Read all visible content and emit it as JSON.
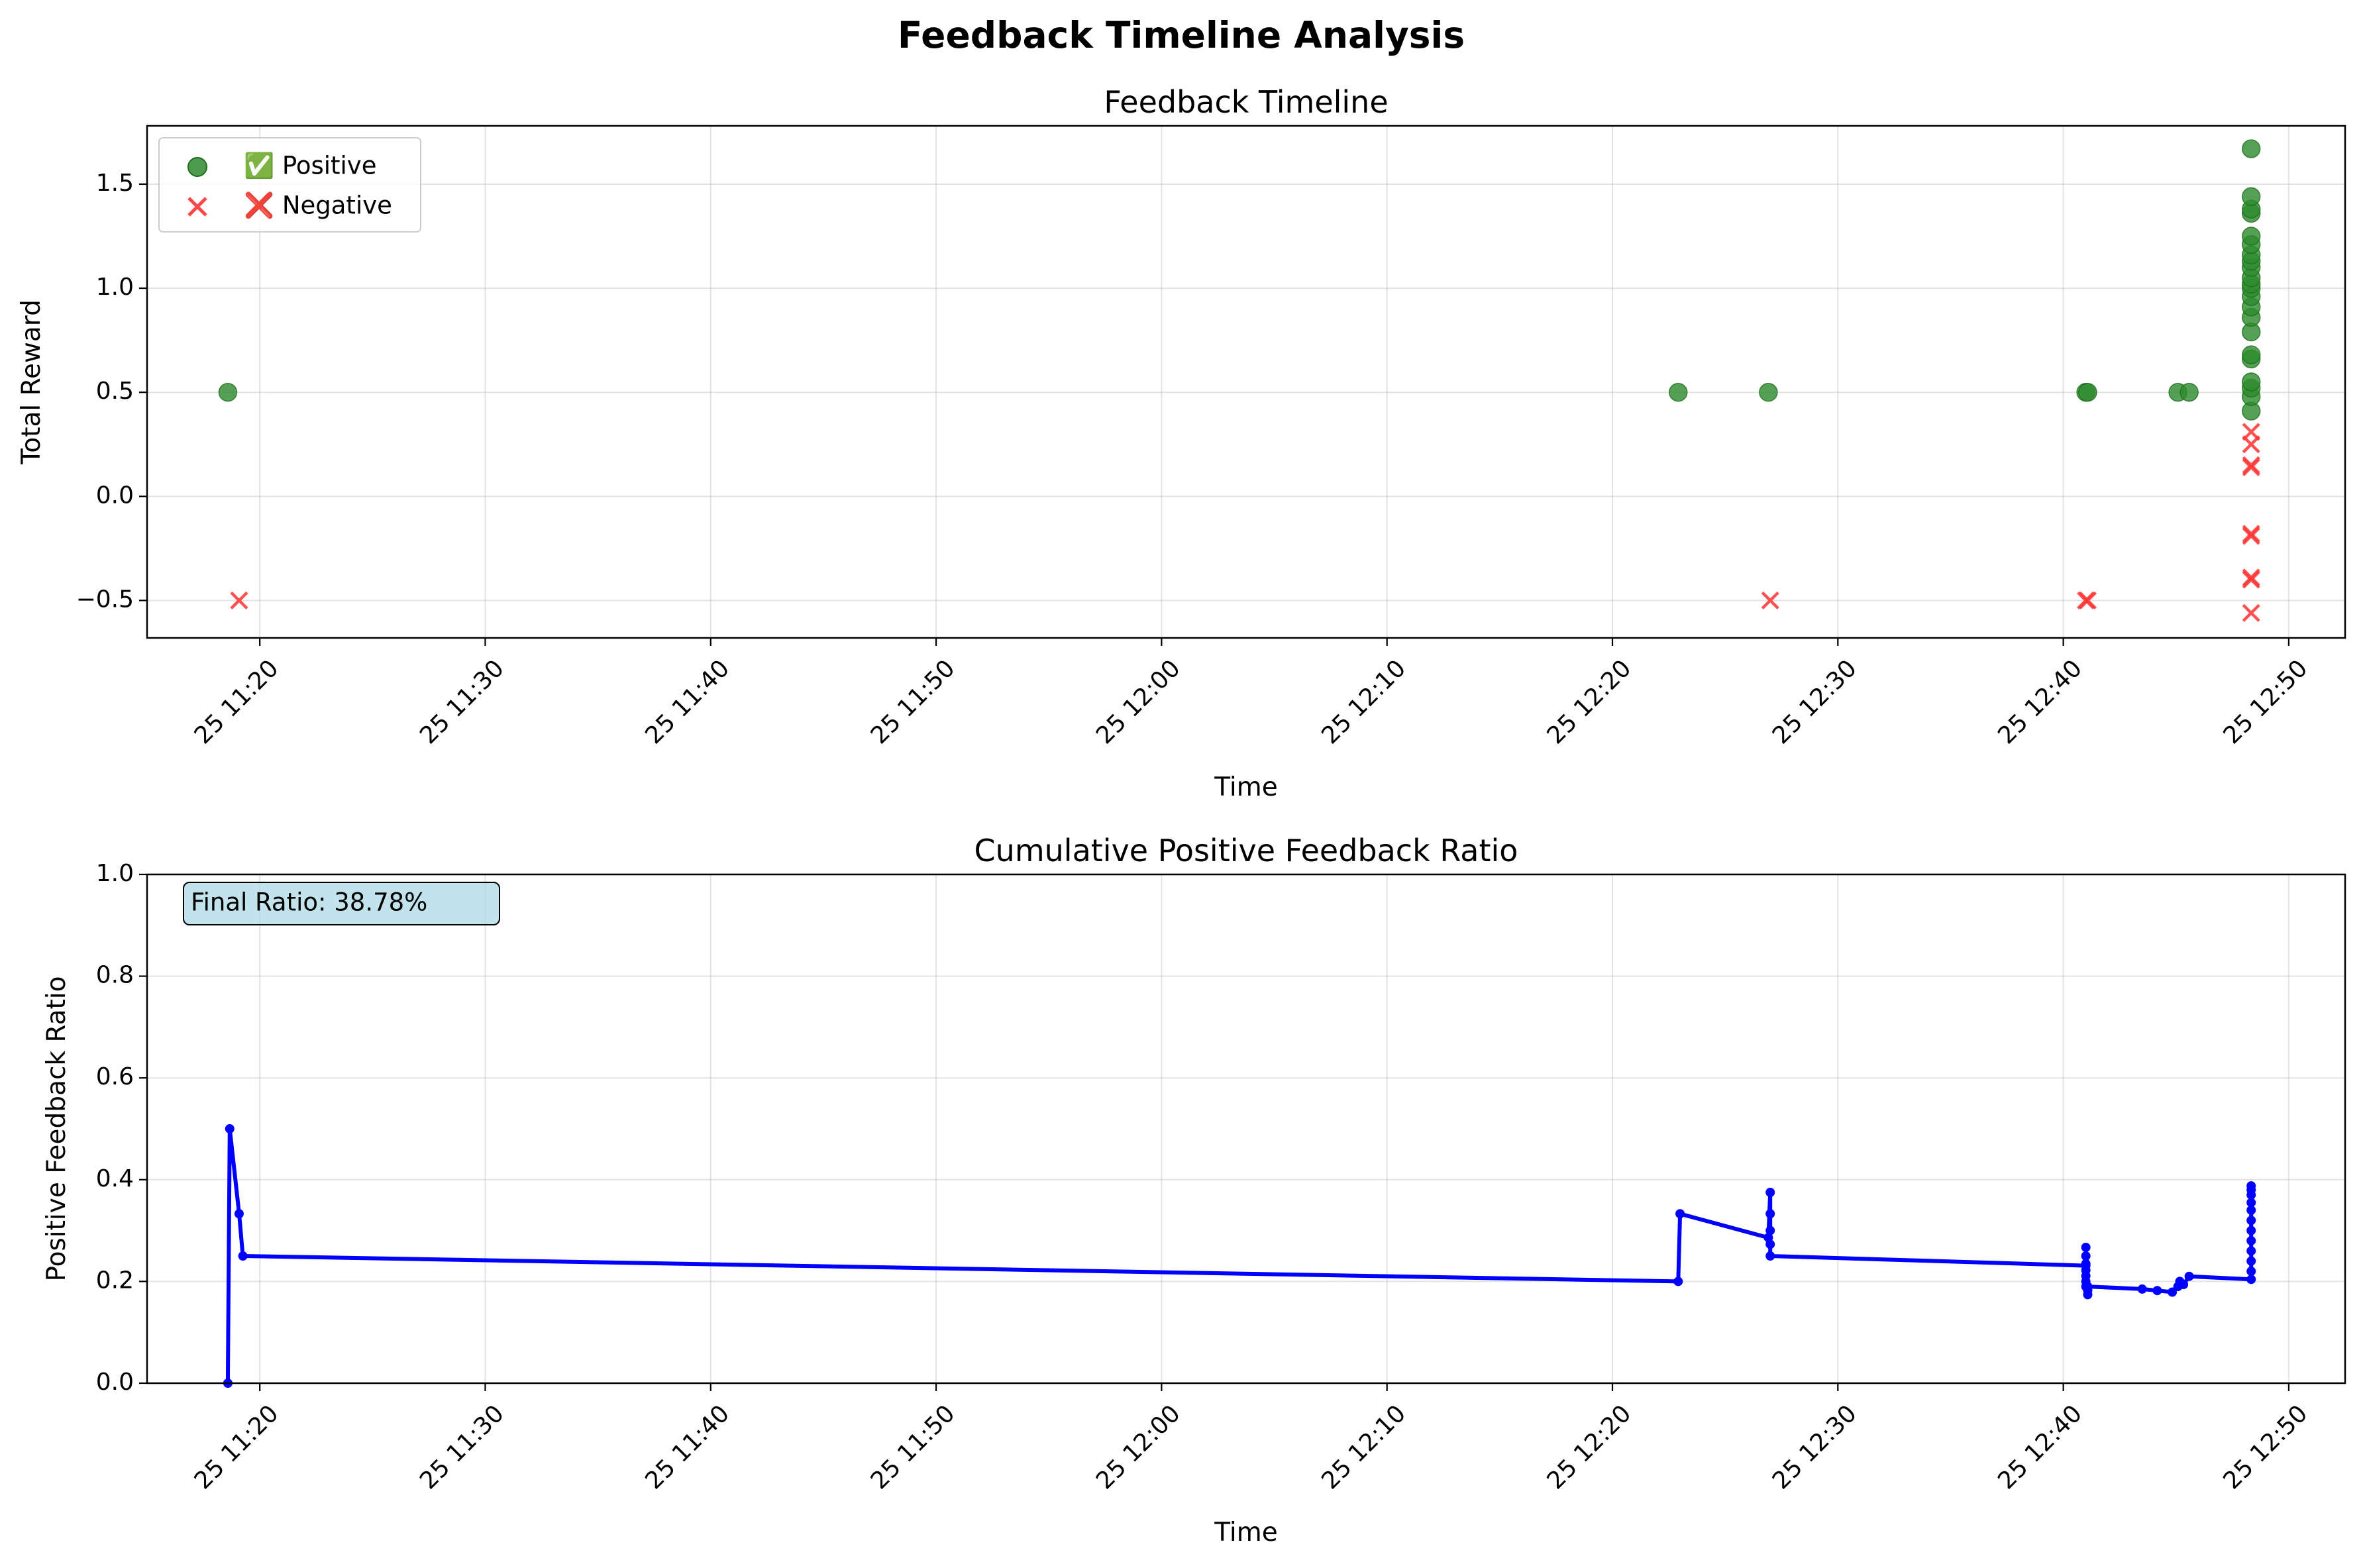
{
  "figure": {
    "suptitle": "Feedback Timeline Analysis"
  },
  "chart_data": [
    {
      "type": "scatter",
      "title": "Feedback Timeline",
      "xlabel": "Time",
      "ylabel": "Total Reward",
      "xlim": [
        "2025-01-25 11:15:00",
        "2025-01-25 12:52:30"
      ],
      "ylim": [
        -0.68,
        1.78
      ],
      "grid": true,
      "legend": "top-left",
      "x_ticks": [
        {
          "value": "2025-01-25 11:20",
          "label": "25 11:20"
        },
        {
          "value": "2025-01-25 11:30",
          "label": "25 11:30"
        },
        {
          "value": "2025-01-25 11:40",
          "label": "25 11:40"
        },
        {
          "value": "2025-01-25 11:50",
          "label": "25 11:50"
        },
        {
          "value": "2025-01-25 12:00",
          "label": "25 12:00"
        },
        {
          "value": "2025-01-25 12:10",
          "label": "25 12:10"
        },
        {
          "value": "2025-01-25 12:20",
          "label": "25 12:20"
        },
        {
          "value": "2025-01-25 12:30",
          "label": "25 12:30"
        },
        {
          "value": "2025-01-25 12:40",
          "label": "25 12:40"
        },
        {
          "value": "2025-01-25 12:50",
          "label": "25 12:50"
        }
      ],
      "y_ticks": [
        {
          "value": -0.5,
          "label": "−0.5"
        },
        {
          "value": 0.0,
          "label": "0.0"
        },
        {
          "value": 0.5,
          "label": "0.5"
        },
        {
          "value": 1.0,
          "label": "1.0"
        },
        {
          "value": 1.5,
          "label": "1.5"
        }
      ],
      "series": [
        {
          "name": "✅ Positive",
          "marker": "circle",
          "color": "#2e8b2e",
          "points": [
            {
              "x": "2025-01-25 11:18:35",
              "y": 0.5
            },
            {
              "x": "2025-01-25 12:22:55",
              "y": 0.5
            },
            {
              "x": "2025-01-25 12:26:55",
              "y": 0.5
            },
            {
              "x": "2025-01-25 12:41:00",
              "y": 0.5
            },
            {
              "x": "2025-01-25 12:41:05",
              "y": 0.5
            },
            {
              "x": "2025-01-25 12:45:05",
              "y": 0.5
            },
            {
              "x": "2025-01-25 12:45:35",
              "y": 0.5
            },
            {
              "x": "2025-01-25 12:48:20",
              "y": 0.41
            },
            {
              "x": "2025-01-25 12:48:20",
              "y": 0.48
            },
            {
              "x": "2025-01-25 12:48:20",
              "y": 0.52
            },
            {
              "x": "2025-01-25 12:48:20",
              "y": 0.55
            },
            {
              "x": "2025-01-25 12:48:20",
              "y": 0.66
            },
            {
              "x": "2025-01-25 12:48:20",
              "y": 0.68
            },
            {
              "x": "2025-01-25 12:48:20",
              "y": 0.79
            },
            {
              "x": "2025-01-25 12:48:20",
              "y": 0.86
            },
            {
              "x": "2025-01-25 12:48:20",
              "y": 0.91
            },
            {
              "x": "2025-01-25 12:48:20",
              "y": 0.96
            },
            {
              "x": "2025-01-25 12:48:20",
              "y": 1.0
            },
            {
              "x": "2025-01-25 12:48:20",
              "y": 1.02
            },
            {
              "x": "2025-01-25 12:48:20",
              "y": 1.05
            },
            {
              "x": "2025-01-25 12:48:20",
              "y": 1.1
            },
            {
              "x": "2025-01-25 12:48:20",
              "y": 1.13
            },
            {
              "x": "2025-01-25 12:48:20",
              "y": 1.16
            },
            {
              "x": "2025-01-25 12:48:20",
              "y": 1.21
            },
            {
              "x": "2025-01-25 12:48:20",
              "y": 1.25
            },
            {
              "x": "2025-01-25 12:48:20",
              "y": 1.36
            },
            {
              "x": "2025-01-25 12:48:20",
              "y": 1.38
            },
            {
              "x": "2025-01-25 12:48:20",
              "y": 1.44
            },
            {
              "x": "2025-01-25 12:48:20",
              "y": 1.67
            }
          ]
        },
        {
          "name": "❌ Negative",
          "marker": "x",
          "color": "#ff3333",
          "points": [
            {
              "x": "2025-01-25 11:19:05",
              "y": -0.5
            },
            {
              "x": "2025-01-25 12:27:00",
              "y": -0.5
            },
            {
              "x": "2025-01-25 12:41:00",
              "y": -0.5
            },
            {
              "x": "2025-01-25 12:41:05",
              "y": -0.5
            },
            {
              "x": "2025-01-25 12:48:20",
              "y": -0.56
            },
            {
              "x": "2025-01-25 12:48:20",
              "y": -0.39
            },
            {
              "x": "2025-01-25 12:48:20",
              "y": -0.4
            },
            {
              "x": "2025-01-25 12:48:20",
              "y": -0.18
            },
            {
              "x": "2025-01-25 12:48:20",
              "y": -0.19
            },
            {
              "x": "2025-01-25 12:48:20",
              "y": 0.14
            },
            {
              "x": "2025-01-25 12:48:20",
              "y": 0.15
            },
            {
              "x": "2025-01-25 12:48:20",
              "y": 0.25
            },
            {
              "x": "2025-01-25 12:48:20",
              "y": 0.31
            }
          ]
        }
      ]
    },
    {
      "type": "line",
      "title": "Cumulative Positive Feedback Ratio",
      "xlabel": "Time",
      "ylabel": "Positive Feedback Ratio",
      "xlim": [
        "2025-01-25 11:15:00",
        "2025-01-25 12:52:30"
      ],
      "ylim": [
        0.0,
        1.0
      ],
      "grid": true,
      "annotation": "Final Ratio: 38.78%",
      "x_ticks": [
        {
          "value": "2025-01-25 11:20",
          "label": "25 11:20"
        },
        {
          "value": "2025-01-25 11:30",
          "label": "25 11:30"
        },
        {
          "value": "2025-01-25 11:40",
          "label": "25 11:40"
        },
        {
          "value": "2025-01-25 11:50",
          "label": "25 11:50"
        },
        {
          "value": "2025-01-25 12:00",
          "label": "25 12:00"
        },
        {
          "value": "2025-01-25 12:10",
          "label": "25 12:10"
        },
        {
          "value": "2025-01-25 12:20",
          "label": "25 12:20"
        },
        {
          "value": "2025-01-25 12:30",
          "label": "25 12:30"
        },
        {
          "value": "2025-01-25 12:40",
          "label": "25 12:40"
        },
        {
          "value": "2025-01-25 12:50",
          "label": "25 12:50"
        }
      ],
      "y_ticks": [
        {
          "value": 0.0,
          "label": "0.0"
        },
        {
          "value": 0.2,
          "label": "0.2"
        },
        {
          "value": 0.4,
          "label": "0.4"
        },
        {
          "value": 0.6,
          "label": "0.6"
        },
        {
          "value": 0.8,
          "label": "0.8"
        },
        {
          "value": 1.0,
          "label": "1.0"
        }
      ],
      "series": [
        {
          "color": "#0000ff",
          "points": [
            {
              "x": "2025-01-25 11:18:35",
              "y": 0.0
            },
            {
              "x": "2025-01-25 11:18:40",
              "y": 0.5
            },
            {
              "x": "2025-01-25 11:19:05",
              "y": 0.333
            },
            {
              "x": "2025-01-25 11:19:15",
              "y": 0.25
            },
            {
              "x": "2025-01-25 12:22:55",
              "y": 0.2
            },
            {
              "x": "2025-01-25 12:23:00",
              "y": 0.333
            },
            {
              "x": "2025-01-25 12:26:55",
              "y": 0.286
            },
            {
              "x": "2025-01-25 12:27:00",
              "y": 0.375
            },
            {
              "x": "2025-01-25 12:27:00",
              "y": 0.333
            },
            {
              "x": "2025-01-25 12:27:00",
              "y": 0.3
            },
            {
              "x": "2025-01-25 12:27:00",
              "y": 0.273
            },
            {
              "x": "2025-01-25 12:27:00",
              "y": 0.25
            },
            {
              "x": "2025-01-25 12:41:00",
              "y": 0.231
            },
            {
              "x": "2025-01-25 12:41:00",
              "y": 0.267
            },
            {
              "x": "2025-01-25 12:41:00",
              "y": 0.25
            },
            {
              "x": "2025-01-25 12:41:00",
              "y": 0.235
            },
            {
              "x": "2025-01-25 12:41:00",
              "y": 0.222
            },
            {
              "x": "2025-01-25 12:41:00",
              "y": 0.211
            },
            {
              "x": "2025-01-25 12:41:00",
              "y": 0.2
            },
            {
              "x": "2025-01-25 12:41:00",
              "y": 0.19
            },
            {
              "x": "2025-01-25 12:41:05",
              "y": 0.182
            },
            {
              "x": "2025-01-25 12:41:05",
              "y": 0.174
            },
            {
              "x": "2025-01-25 12:41:05",
              "y": 0.19
            },
            {
              "x": "2025-01-25 12:43:30",
              "y": 0.185
            },
            {
              "x": "2025-01-25 12:44:10",
              "y": 0.182
            },
            {
              "x": "2025-01-25 12:44:50",
              "y": 0.179
            },
            {
              "x": "2025-01-25 12:45:05",
              "y": 0.19
            },
            {
              "x": "2025-01-25 12:45:10",
              "y": 0.2
            },
            {
              "x": "2025-01-25 12:45:20",
              "y": 0.194
            },
            {
              "x": "2025-01-25 12:45:35",
              "y": 0.21
            },
            {
              "x": "2025-01-25 12:48:20",
              "y": 0.204
            },
            {
              "x": "2025-01-25 12:48:20",
              "y": 0.22
            },
            {
              "x": "2025-01-25 12:48:20",
              "y": 0.24
            },
            {
              "x": "2025-01-25 12:48:20",
              "y": 0.26
            },
            {
              "x": "2025-01-25 12:48:20",
              "y": 0.28
            },
            {
              "x": "2025-01-25 12:48:20",
              "y": 0.3
            },
            {
              "x": "2025-01-25 12:48:20",
              "y": 0.32
            },
            {
              "x": "2025-01-25 12:48:20",
              "y": 0.34
            },
            {
              "x": "2025-01-25 12:48:20",
              "y": 0.355
            },
            {
              "x": "2025-01-25 12:48:20",
              "y": 0.37
            },
            {
              "x": "2025-01-25 12:48:20",
              "y": 0.38
            },
            {
              "x": "2025-01-25 12:48:20",
              "y": 0.3878
            }
          ]
        }
      ]
    }
  ]
}
